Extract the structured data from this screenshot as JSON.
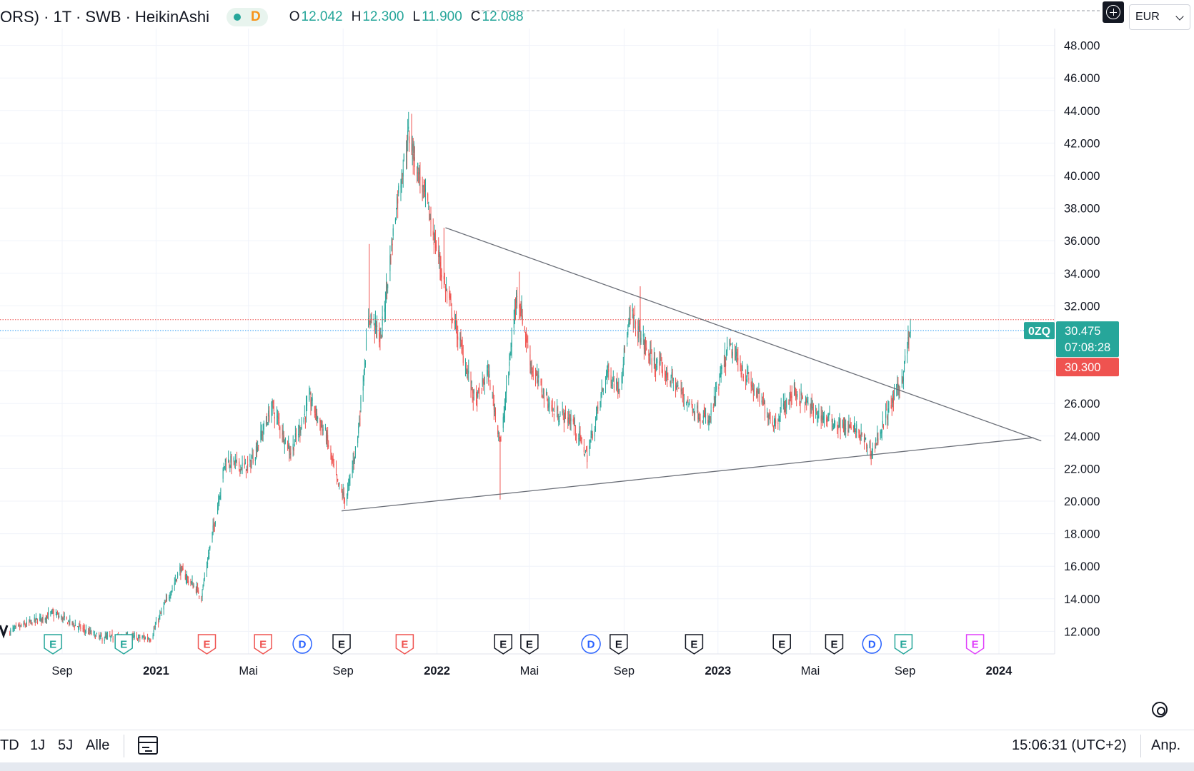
{
  "header": {
    "title": "ORS) · 1T · SWB · HeikinAshi",
    "status_letter": "D",
    "ohlc": [
      {
        "label": "O",
        "value": "12.042"
      },
      {
        "label": "H",
        "value": "12.300"
      },
      {
        "label": "L",
        "value": "11.900"
      },
      {
        "label": "C",
        "value": "12.088"
      }
    ]
  },
  "currency": "EUR",
  "bottom": {
    "ranges": [
      "TD",
      "1J",
      "5J",
      "Alle"
    ],
    "clock": "15:06:31 (UTC+2)",
    "adjust": "Anp."
  },
  "price_tags": {
    "symbol": "0ZQ",
    "last": "30.475",
    "countdown": "07:08:28",
    "red": "30.300"
  },
  "chart_data": {
    "type": "candlestick",
    "style": "HeikinAshi",
    "interval": "1T",
    "exchange": "SWB",
    "ylim": [
      10.5,
      49.5
    ],
    "y_ticks": [
      "12.000",
      "14.000",
      "16.000",
      "18.000",
      "20.000",
      "22.000",
      "24.000",
      "26.000",
      "28.000",
      "30.000",
      "32.000",
      "34.000",
      "36.000",
      "38.000",
      "40.000",
      "42.000",
      "44.000",
      "46.000",
      "48.000"
    ],
    "x_ticks": [
      {
        "label": "Sep",
        "date": "2020-09-01"
      },
      {
        "label": "2021",
        "date": "2021-01-01"
      },
      {
        "label": "Mai",
        "date": "2021-05-01"
      },
      {
        "label": "Sep",
        "date": "2021-09-01"
      },
      {
        "label": "2022",
        "date": "2022-01-01"
      },
      {
        "label": "Mai",
        "date": "2022-05-01"
      },
      {
        "label": "Sep",
        "date": "2022-09-01"
      },
      {
        "label": "2023",
        "date": "2023-01-01"
      },
      {
        "label": "Mai",
        "date": "2023-05-01"
      },
      {
        "label": "Sep",
        "date": "2023-09-01"
      },
      {
        "label": "2024",
        "date": "2024-01-01"
      }
    ],
    "up_color": "#26a69a",
    "down_color": "#ef5350",
    "price_path": [
      {
        "date": "2020-06-25",
        "price": 12.0
      },
      {
        "date": "2020-08-20",
        "price": 13.1
      },
      {
        "date": "2020-10-20",
        "price": 11.6
      },
      {
        "date": "2020-12-25",
        "price": 11.6
      },
      {
        "date": "2021-02-01",
        "price": 15.8
      },
      {
        "date": "2021-03-01",
        "price": 14.2
      },
      {
        "date": "2021-04-01",
        "price": 22.5
      },
      {
        "date": "2021-05-01",
        "price": 22.0
      },
      {
        "date": "2021-06-01",
        "price": 25.8
      },
      {
        "date": "2021-06-25",
        "price": 23.0
      },
      {
        "date": "2021-07-20",
        "price": 26.2
      },
      {
        "date": "2021-08-10",
        "price": 24.0
      },
      {
        "date": "2021-08-25",
        "price": 21.0
      },
      {
        "date": "2021-09-05",
        "price": 20.0
      },
      {
        "date": "2021-09-20",
        "price": 24.0
      },
      {
        "date": "2021-10-05",
        "price": 31.5
      },
      {
        "date": "2021-10-20",
        "price": 30.0
      },
      {
        "date": "2021-11-10",
        "price": 38.5
      },
      {
        "date": "2021-11-25",
        "price": 42.5
      },
      {
        "date": "2021-12-20",
        "price": 38.0
      },
      {
        "date": "2022-01-10",
        "price": 33.5
      },
      {
        "date": "2022-02-01",
        "price": 29.5
      },
      {
        "date": "2022-02-20",
        "price": 26.0
      },
      {
        "date": "2022-03-08",
        "price": 28.0
      },
      {
        "date": "2022-03-25",
        "price": 23.5
      },
      {
        "date": "2022-04-15",
        "price": 33.0
      },
      {
        "date": "2022-05-05",
        "price": 28.0
      },
      {
        "date": "2022-06-01",
        "price": 25.5
      },
      {
        "date": "2022-06-25",
        "price": 25.0
      },
      {
        "date": "2022-07-15",
        "price": 22.8
      },
      {
        "date": "2022-08-10",
        "price": 28.0
      },
      {
        "date": "2022-08-25",
        "price": 27.0
      },
      {
        "date": "2022-09-10",
        "price": 31.5
      },
      {
        "date": "2022-10-05",
        "price": 28.8
      },
      {
        "date": "2022-11-01",
        "price": 27.5
      },
      {
        "date": "2022-11-25",
        "price": 26.0
      },
      {
        "date": "2022-12-20",
        "price": 24.8
      },
      {
        "date": "2023-01-15",
        "price": 29.5
      },
      {
        "date": "2023-02-15",
        "price": 27.0
      },
      {
        "date": "2023-03-15",
        "price": 24.8
      },
      {
        "date": "2023-04-10",
        "price": 26.8
      },
      {
        "date": "2023-05-05",
        "price": 25.5
      },
      {
        "date": "2023-06-01",
        "price": 24.8
      },
      {
        "date": "2023-07-01",
        "price": 24.3
      },
      {
        "date": "2023-07-20",
        "price": 23.0
      },
      {
        "date": "2023-08-10",
        "price": 25.5
      },
      {
        "date": "2023-08-28",
        "price": 27.5
      },
      {
        "date": "2023-09-08",
        "price": 30.5
      }
    ],
    "spikes": [
      {
        "date": "2021-11-28",
        "high": 43.8
      },
      {
        "date": "2021-10-05",
        "high": 35.8
      },
      {
        "date": "2022-01-10",
        "high": 36.8
      },
      {
        "date": "2022-03-24",
        "low": 20.1
      },
      {
        "date": "2022-04-17",
        "high": 34.1
      },
      {
        "date": "2022-07-16",
        "low": 22.0
      },
      {
        "date": "2022-09-22",
        "high": 33.2
      },
      {
        "date": "2023-07-21",
        "low": 22.6
      },
      {
        "date": "2023-09-08",
        "high": 31.2
      }
    ],
    "trendlines": [
      {
        "from": {
          "date": "2022-01-12",
          "price": 36.8
        },
        "to": {
          "date": "2024-02-25",
          "price": 23.7
        }
      },
      {
        "from": {
          "date": "2021-08-30",
          "price": 19.4
        },
        "to": {
          "date": "2024-02-15",
          "price": 23.9
        }
      }
    ],
    "price_lines": [
      {
        "price": 30.475,
        "color": "#2196f3"
      },
      {
        "price": 31.15,
        "color": "#ef5350"
      }
    ],
    "events": [
      {
        "date": "2020-08-20",
        "kind": "E",
        "color": "#26a69a"
      },
      {
        "date": "2020-11-20",
        "kind": "E",
        "color": "#26a69a"
      },
      {
        "date": "2021-03-08",
        "kind": "E",
        "color": "#ef5350"
      },
      {
        "date": "2021-05-20",
        "kind": "E",
        "color": "#ef5350"
      },
      {
        "date": "2021-07-10",
        "kind": "D",
        "color": "#2962ff"
      },
      {
        "date": "2021-08-30",
        "kind": "E",
        "color": "#131722"
      },
      {
        "date": "2021-11-20",
        "kind": "E",
        "color": "#ef5350"
      },
      {
        "date": "2022-03-28",
        "kind": "E",
        "color": "#131722"
      },
      {
        "date": "2022-05-01",
        "kind": "E",
        "color": "#131722"
      },
      {
        "date": "2022-07-20",
        "kind": "D",
        "color": "#2962ff"
      },
      {
        "date": "2022-08-25",
        "kind": "E",
        "color": "#131722"
      },
      {
        "date": "2022-12-01",
        "kind": "E",
        "color": "#131722"
      },
      {
        "date": "2023-03-25",
        "kind": "E",
        "color": "#131722"
      },
      {
        "date": "2023-06-01",
        "kind": "E",
        "color": "#131722"
      },
      {
        "date": "2023-07-20",
        "kind": "D",
        "color": "#2962ff"
      },
      {
        "date": "2023-08-30",
        "kind": "E",
        "color": "#26a69a"
      },
      {
        "date": "2023-12-01",
        "kind": "E",
        "color": "#e040fb"
      }
    ]
  }
}
